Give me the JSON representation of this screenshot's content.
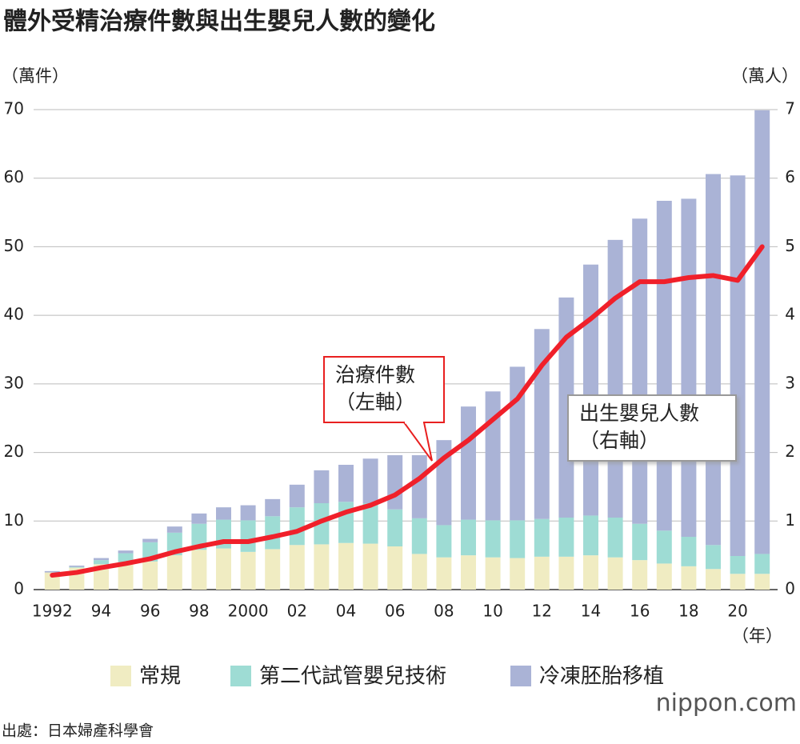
{
  "chart_data": {
    "type": "bar",
    "title": "體外受精治療件數與出生嬰兒人數的變化",
    "y_unit": "（萬件）",
    "y2_unit": "（萬人）",
    "x_unit": "（年）",
    "source": "出處：日本婦產科學會",
    "logo": "nippon.com",
    "categories": [
      "1992",
      null,
      "94",
      null,
      "96",
      null,
      "98",
      null,
      "2000",
      null,
      "02",
      null,
      "04",
      null,
      "06",
      null,
      "08",
      null,
      "10",
      null,
      "12",
      null,
      "14",
      null,
      "16",
      null,
      "18",
      null,
      "20",
      null
    ],
    "ylim": [
      0,
      70
    ],
    "yticks": [
      0,
      10,
      20,
      30,
      40,
      50,
      60,
      70
    ],
    "y2lim": [
      0,
      7
    ],
    "y2ticks": [
      0,
      1,
      2,
      3,
      4,
      5,
      6,
      7
    ],
    "grid": true,
    "series": [
      {
        "name": "常規",
        "color": "#f0ecc2",
        "type": "bar",
        "values": [
          2.5,
          3.2,
          3.7,
          4.0,
          4.1,
          5.0,
          5.8,
          6.0,
          5.5,
          5.9,
          6.5,
          6.6,
          6.8,
          6.7,
          6.3,
          5.2,
          4.7,
          5.0,
          4.7,
          4.6,
          4.8,
          4.8,
          5.0,
          4.7,
          4.3,
          3.8,
          3.4,
          3.0,
          2.3,
          2.3
        ]
      },
      {
        "name": "第二代試管嬰兒技術",
        "color": "#9edcd4",
        "type": "bar",
        "values": [
          0,
          0.1,
          0.6,
          1.3,
          2.8,
          3.3,
          3.8,
          4.2,
          4.6,
          4.8,
          5.5,
          6.0,
          6.0,
          5.9,
          5.4,
          5.2,
          4.7,
          5.2,
          5.4,
          5.5,
          5.5,
          5.7,
          5.8,
          5.8,
          5.3,
          4.8,
          4.3,
          3.5,
          2.6,
          2.9
        ]
      },
      {
        "name": "冷凍胚胎移植",
        "color": "#aab3d6",
        "type": "bar",
        "values": [
          0.2,
          0.2,
          0.3,
          0.4,
          0.5,
          0.9,
          1.5,
          1.8,
          2.2,
          2.5,
          3.3,
          4.8,
          5.4,
          6.5,
          7.9,
          9.2,
          12.4,
          16.5,
          18.8,
          22.4,
          27.7,
          32.1,
          36.6,
          40.5,
          44.5,
          48.1,
          49.3,
          54.1,
          55.5,
          64.7
        ]
      },
      {
        "color": "#f0202a",
        "type": "line",
        "axis": "y2",
        "values": [
          0.21,
          0.25,
          0.32,
          0.38,
          0.45,
          0.55,
          0.63,
          0.7,
          0.7,
          0.77,
          0.85,
          1.0,
          1.13,
          1.23,
          1.38,
          1.62,
          1.92,
          2.18,
          2.48,
          2.78,
          3.27,
          3.68,
          3.95,
          4.25,
          4.49,
          4.49,
          4.55,
          4.58,
          4.51,
          5.0
        ]
      }
    ],
    "annotations": [
      {
        "lines": [
          "治療件數",
          "（左軸）"
        ]
      },
      {
        "lines": [
          "出生嬰兒人數",
          "（右軸）"
        ]
      }
    ]
  }
}
